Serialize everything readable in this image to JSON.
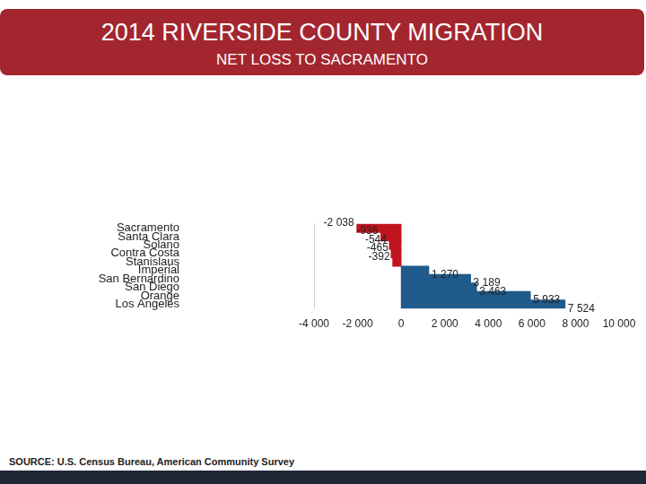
{
  "chart_data": {
    "type": "bar",
    "title": "2014 RIVERSIDE COUNTY MIGRATION",
    "subtitle": "NET LOSS TO SACRAMENTO",
    "source": "SOURCE: U.S. Census Bureau, American Community Survey",
    "orientation": "horizontal",
    "categories": [
      "Sacramento",
      "Santa Clara",
      "Solano",
      "Contra Costa",
      "Stanislaus",
      "Imperial",
      "San Bernardino",
      "San Diego",
      "Orange",
      "Los Angeles"
    ],
    "values": [
      -2038,
      -936,
      -544,
      -465,
      -392,
      1270,
      3189,
      3463,
      5933,
      7524
    ],
    "value_labels": [
      "-2 038",
      "-936",
      "-544",
      "-465",
      "-392",
      "1 270",
      "3 189",
      "3 463",
      "5 933",
      "7 524"
    ],
    "colors": [
      "#c0141e",
      "#c0141e",
      "#c0141e",
      "#c0141e",
      "#c0141e",
      "#1f5a8a",
      "#1f5a8a",
      "#1f5a8a",
      "#1f5a8a",
      "#1f5a8a"
    ],
    "xlim": [
      -4000,
      10000
    ],
    "xticks": [
      {
        "value": -4000,
        "label": "-4 000"
      },
      {
        "value": -2000,
        "label": "-2 000"
      },
      0,
      {
        "value": 2000,
        "label": "2 000"
      },
      {
        "value": 4000,
        "label": "4 000"
      },
      {
        "value": 6000,
        "label": "6 000"
      },
      {
        "value": 8000,
        "label": "8 000"
      },
      {
        "value": 10000,
        "label": "10 000"
      }
    ],
    "grid": false,
    "data_labels": true
  }
}
